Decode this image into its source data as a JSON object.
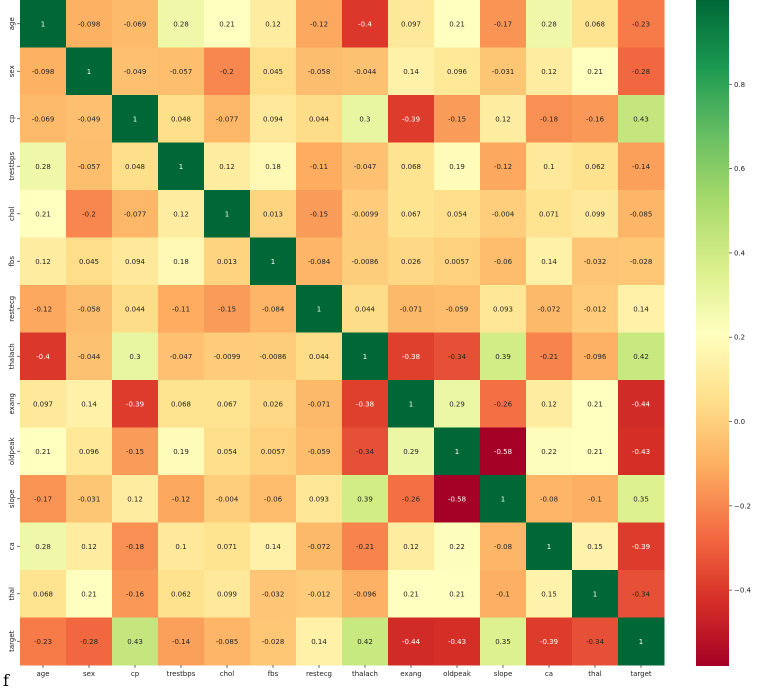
{
  "chart_data": {
    "type": "heatmap",
    "title": "",
    "xlabel": "",
    "ylabel": "",
    "x_labels": [
      "age",
      "sex",
      "cp",
      "trestbps",
      "chol",
      "fbs",
      "restecg",
      "thalach",
      "exang",
      "oldpeak",
      "slope",
      "ca",
      "thal",
      "target"
    ],
    "y_labels": [
      "age",
      "sex",
      "cp",
      "trestbps",
      "chol",
      "fbs",
      "restecg",
      "thalach",
      "exang",
      "oldpeak",
      "slope",
      "ca",
      "thal",
      "target"
    ],
    "cell_text": [
      [
        "1",
        "-0.098",
        "-0.069",
        "0.28",
        "0.21",
        "0.12",
        "-0.12",
        "-0.4",
        "0.097",
        "0.21",
        "-0.17",
        "0.28",
        "0.068",
        "-0.23"
      ],
      [
        "-0.098",
        "1",
        "-0.049",
        "-0.057",
        "-0.2",
        "0.045",
        "-0.058",
        "-0.044",
        "0.14",
        "0.096",
        "-0.031",
        "0.12",
        "0.21",
        "-0.28"
      ],
      [
        "-0.069",
        "-0.049",
        "1",
        "0.048",
        "-0.077",
        "0.094",
        "0.044",
        "0.3",
        "-0.39",
        "-0.15",
        "0.12",
        "-0.18",
        "-0.16",
        "0.43"
      ],
      [
        "0.28",
        "-0.057",
        "0.048",
        "1",
        "0.12",
        "0.18",
        "-0.11",
        "-0.047",
        "0.068",
        "0.19",
        "-0.12",
        "0.1",
        "0.062",
        "-0.14"
      ],
      [
        "0.21",
        "-0.2",
        "-0.077",
        "0.12",
        "1",
        "0.013",
        "-0.15",
        "-0.0099",
        "0.067",
        "0.054",
        "-0.004",
        "0.071",
        "0.099",
        "-0.085"
      ],
      [
        "0.12",
        "0.045",
        "0.094",
        "0.18",
        "0.013",
        "1",
        "-0.084",
        "-0.0086",
        "0.026",
        "0.0057",
        "-0.06",
        "0.14",
        "-0.032",
        "-0.028"
      ],
      [
        "-0.12",
        "-0.058",
        "0.044",
        "-0.11",
        "-0.15",
        "-0.084",
        "1",
        "0.044",
        "-0.071",
        "-0.059",
        "0.093",
        "-0.072",
        "-0.012",
        "0.14"
      ],
      [
        "-0.4",
        "-0.044",
        "0.3",
        "-0.047",
        "-0.0099",
        "-0.0086",
        "0.044",
        "1",
        "-0.38",
        "-0.34",
        "0.39",
        "-0.21",
        "-0.096",
        "0.42"
      ],
      [
        "0.097",
        "0.14",
        "-0.39",
        "0.068",
        "0.067",
        "0.026",
        "-0.071",
        "-0.38",
        "1",
        "0.29",
        "-0.26",
        "0.12",
        "0.21",
        "-0.44"
      ],
      [
        "0.21",
        "0.096",
        "-0.15",
        "0.19",
        "0.054",
        "0.0057",
        "-0.059",
        "-0.34",
        "0.29",
        "1",
        "-0.58",
        "0.22",
        "0.21",
        "-0.43"
      ],
      [
        "-0.17",
        "-0.031",
        "0.12",
        "-0.12",
        "-0.004",
        "-0.06",
        "0.093",
        "0.39",
        "-0.26",
        "-0.58",
        "1",
        "-0.08",
        "-0.1",
        "0.35"
      ],
      [
        "0.28",
        "0.12",
        "-0.18",
        "0.1",
        "0.071",
        "0.14",
        "-0.072",
        "-0.21",
        "0.12",
        "0.22",
        "-0.08",
        "1",
        "0.15",
        "-0.39"
      ],
      [
        "0.068",
        "0.21",
        "-0.16",
        "0.062",
        "0.099",
        "-0.032",
        "-0.012",
        "-0.096",
        "0.21",
        "0.21",
        "-0.1",
        "0.15",
        "1",
        "-0.34"
      ],
      [
        "-0.23",
        "-0.28",
        "0.43",
        "-0.14",
        "-0.085",
        "-0.028",
        "0.14",
        "0.42",
        "-0.44",
        "-0.43",
        "0.35",
        "-0.39",
        "-0.34",
        "1"
      ]
    ],
    "colormap": "RdYlGn",
    "vmin": -0.58,
    "vmax": 1,
    "colorbar_ticks": [
      "0.8",
      "0.6",
      "0.4",
      "0.2",
      "0.0",
      "−0.2",
      "−0.4"
    ],
    "colorbar_tick_values": [
      0.8,
      0.6,
      0.4,
      0.2,
      0.0,
      -0.2,
      -0.4
    ],
    "grid": false,
    "legend": "colorbar-right"
  },
  "colors": {
    "ramp": [
      "#a50026",
      "#d73027",
      "#f46d43",
      "#fdae61",
      "#fee08b",
      "#ffffbf",
      "#d9ef8b",
      "#a6d96a",
      "#66bd63",
      "#1a9850",
      "#006837"
    ]
  },
  "stray_char": "f"
}
